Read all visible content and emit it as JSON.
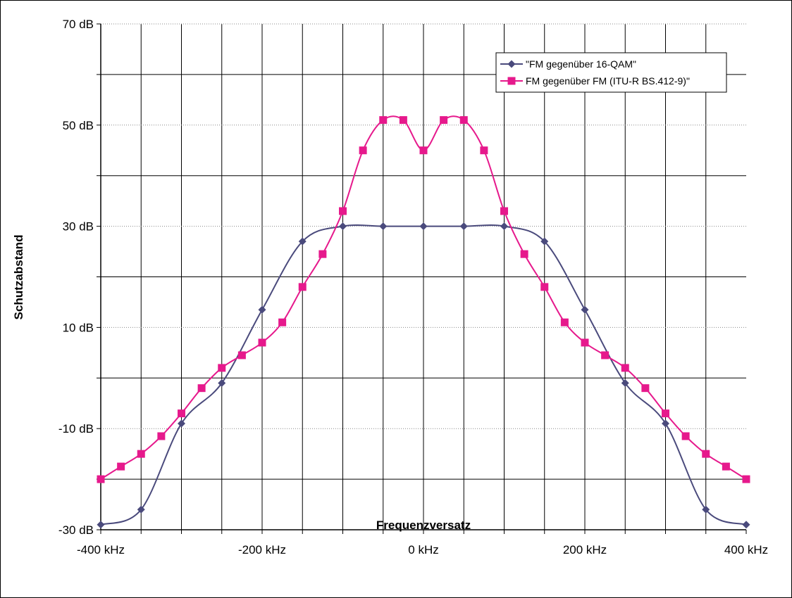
{
  "chart_data": {
    "type": "line",
    "title": "",
    "xlabel": "Frequenzversatz",
    "ylabel": "Schutzabstand",
    "xlim": [
      -400,
      400
    ],
    "ylim": [
      -30,
      70
    ],
    "x_ticks": [
      -400,
      -200,
      0,
      200,
      400
    ],
    "x_tick_labels": [
      "-400 kHz",
      "-200 kHz",
      "0 kHz",
      "200 kHz",
      "400 kHz"
    ],
    "y_ticks": [
      -30,
      -10,
      10,
      30,
      50,
      70
    ],
    "y_tick_labels": [
      "-30 dB",
      "-10 dB",
      "10 dB",
      "30 dB",
      "50 dB",
      "70 dB"
    ],
    "grid": true,
    "legend_position": "top-right",
    "series": [
      {
        "name": "\"FM gegenüber 16-QAM\"",
        "color": "#4a4a7c",
        "marker": "diamond",
        "points": [
          [
            -400,
            -29
          ],
          [
            -350,
            -26
          ],
          [
            -300,
            -9
          ],
          [
            -250,
            -1
          ],
          [
            -200,
            13.5
          ],
          [
            -150,
            27
          ],
          [
            -100,
            30
          ],
          [
            -50,
            30
          ],
          [
            0,
            30
          ],
          [
            50,
            30
          ],
          [
            100,
            30
          ],
          [
            150,
            27
          ],
          [
            200,
            13.5
          ],
          [
            250,
            -1
          ],
          [
            300,
            -9
          ],
          [
            350,
            -26
          ],
          [
            400,
            -29
          ]
        ]
      },
      {
        "name": "FM gegenüber FM (ITU-R BS.412-9)\"",
        "color": "#e6198c",
        "marker": "square",
        "points": [
          [
            -400,
            -20
          ],
          [
            -375,
            -17.5
          ],
          [
            -350,
            -15
          ],
          [
            -325,
            -11.5
          ],
          [
            -300,
            -7
          ],
          [
            -275,
            -2
          ],
          [
            -250,
            2
          ],
          [
            -225,
            4.5
          ],
          [
            -200,
            7
          ],
          [
            -175,
            11
          ],
          [
            -150,
            18
          ],
          [
            -125,
            24.5
          ],
          [
            -100,
            33
          ],
          [
            -75,
            45
          ],
          [
            -50,
            51
          ],
          [
            -25,
            51
          ],
          [
            0,
            45
          ],
          [
            25,
            51
          ],
          [
            50,
            51
          ],
          [
            75,
            45
          ],
          [
            100,
            33
          ],
          [
            125,
            24.5
          ],
          [
            150,
            18
          ],
          [
            175,
            11
          ],
          [
            200,
            7
          ],
          [
            225,
            4.5
          ],
          [
            250,
            2
          ],
          [
            275,
            -2
          ],
          [
            300,
            -7
          ],
          [
            325,
            -11.5
          ],
          [
            350,
            -15
          ],
          [
            375,
            -17.5
          ],
          [
            400,
            -20
          ]
        ]
      }
    ]
  }
}
